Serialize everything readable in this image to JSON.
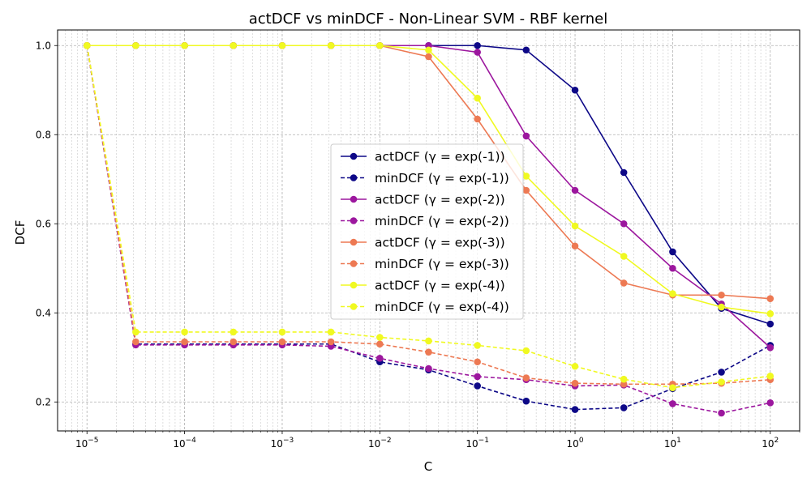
{
  "chart_data": {
    "type": "line",
    "title": "actDCF vs minDCF - Non-Linear SVM - RBF kernel",
    "xlabel": "C",
    "ylabel": "DCF",
    "x_scale": "log",
    "x": [
      1e-05,
      3.16e-05,
      0.0001,
      0.000316,
      0.001,
      0.00316,
      0.01,
      0.0316,
      0.1,
      0.316,
      1,
      3.16,
      10,
      31.6,
      100
    ],
    "xlim": [
      5e-06,
      200
    ],
    "ylim": [
      0.135,
      1.035
    ],
    "x_ticks": [
      {
        "value": 1e-05,
        "base": "10",
        "exp": "−5"
      },
      {
        "value": 0.0001,
        "base": "10",
        "exp": "−4"
      },
      {
        "value": 0.001,
        "base": "10",
        "exp": "−3"
      },
      {
        "value": 0.01,
        "base": "10",
        "exp": "−2"
      },
      {
        "value": 0.1,
        "base": "10",
        "exp": "−1"
      },
      {
        "value": 1,
        "base": "10",
        "exp": "0"
      },
      {
        "value": 10,
        "base": "10",
        "exp": "1"
      },
      {
        "value": 100,
        "base": "10",
        "exp": "2"
      }
    ],
    "y_ticks": [
      {
        "value": 0.2,
        "label": "0.2"
      },
      {
        "value": 0.4,
        "label": "0.4"
      },
      {
        "value": 0.6,
        "label": "0.6"
      },
      {
        "value": 0.8,
        "label": "0.8"
      },
      {
        "value": 1.0,
        "label": "1.0"
      }
    ],
    "grid": true,
    "grid_minor": true,
    "legend_position": "center",
    "series": [
      {
        "name": "actDCF (γ = exp(-1))",
        "color": "#0d0887",
        "dashed": false,
        "values": [
          1.0,
          1.0,
          1.0,
          1.0,
          1.0,
          1.0,
          1.0,
          1.0,
          1.0,
          0.99,
          0.9,
          0.715,
          0.537,
          0.41,
          0.375
        ]
      },
      {
        "name": "minDCF (γ = exp(-1))",
        "color": "#0d0887",
        "dashed": true,
        "values": [
          1.0,
          0.33,
          0.33,
          0.33,
          0.33,
          0.33,
          0.29,
          0.272,
          0.236,
          0.202,
          0.183,
          0.187,
          0.23,
          0.267,
          0.327
        ]
      },
      {
        "name": "actDCF (γ = exp(-2))",
        "color": "#9c179e",
        "dashed": false,
        "values": [
          1.0,
          1.0,
          1.0,
          1.0,
          1.0,
          1.0,
          1.0,
          1.0,
          0.985,
          0.797,
          0.675,
          0.6,
          0.5,
          0.42,
          0.322
        ]
      },
      {
        "name": "minDCF (γ = exp(-2))",
        "color": "#9c179e",
        "dashed": true,
        "values": [
          1.0,
          0.328,
          0.328,
          0.328,
          0.328,
          0.325,
          0.298,
          0.275,
          0.257,
          0.25,
          0.236,
          0.238,
          0.196,
          0.175,
          0.198
        ]
      },
      {
        "name": "actDCF (γ = exp(-3))",
        "color": "#ed7953",
        "dashed": false,
        "values": [
          1.0,
          1.0,
          1.0,
          1.0,
          1.0,
          1.0,
          1.0,
          0.975,
          0.835,
          0.675,
          0.55,
          0.467,
          0.44,
          0.44,
          0.432
        ]
      },
      {
        "name": "minDCF (γ = exp(-3))",
        "color": "#ed7953",
        "dashed": true,
        "values": [
          1.0,
          0.335,
          0.335,
          0.335,
          0.335,
          0.335,
          0.33,
          0.312,
          0.29,
          0.254,
          0.242,
          0.24,
          0.24,
          0.242,
          0.25
        ]
      },
      {
        "name": "actDCF (γ = exp(-4))",
        "color": "#f0f921",
        "dashed": false,
        "values": [
          1.0,
          1.0,
          1.0,
          1.0,
          1.0,
          1.0,
          1.0,
          0.99,
          0.882,
          0.707,
          0.595,
          0.527,
          0.443,
          0.413,
          0.398
        ]
      },
      {
        "name": "minDCF (γ = exp(-4))",
        "color": "#f0f921",
        "dashed": true,
        "values": [
          1.0,
          0.357,
          0.357,
          0.357,
          0.357,
          0.357,
          0.345,
          0.337,
          0.327,
          0.315,
          0.28,
          0.251,
          0.232,
          0.245,
          0.258
        ]
      }
    ]
  }
}
